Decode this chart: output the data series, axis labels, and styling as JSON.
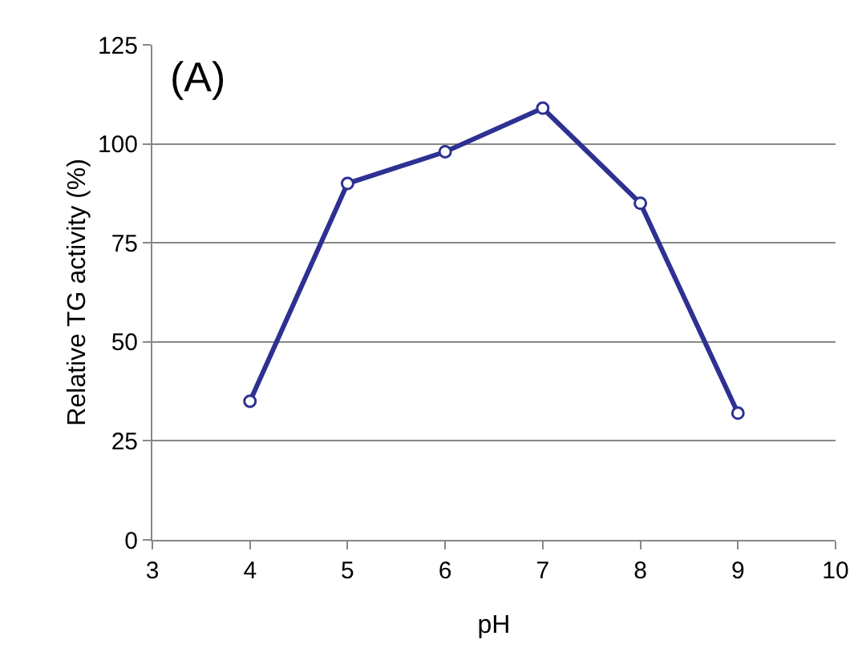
{
  "chart_data": {
    "type": "line",
    "annotations": [
      "(A)"
    ],
    "xlabel": "pH",
    "ylabel": "Relative TG activity (%)",
    "x": [
      4,
      5,
      6,
      7,
      8,
      9
    ],
    "series": [
      {
        "color": "#2e3192",
        "values": [
          35,
          90,
          98,
          109,
          85,
          32
        ]
      }
    ],
    "xlim": [
      3,
      10
    ],
    "xticks": [
      3,
      4,
      5,
      6,
      7,
      8,
      9,
      10
    ],
    "ylim": [
      0,
      125
    ],
    "yticks": [
      0,
      25,
      50,
      75,
      100,
      125
    ],
    "grid": "y",
    "marker": "circle",
    "line_style": "solid"
  }
}
